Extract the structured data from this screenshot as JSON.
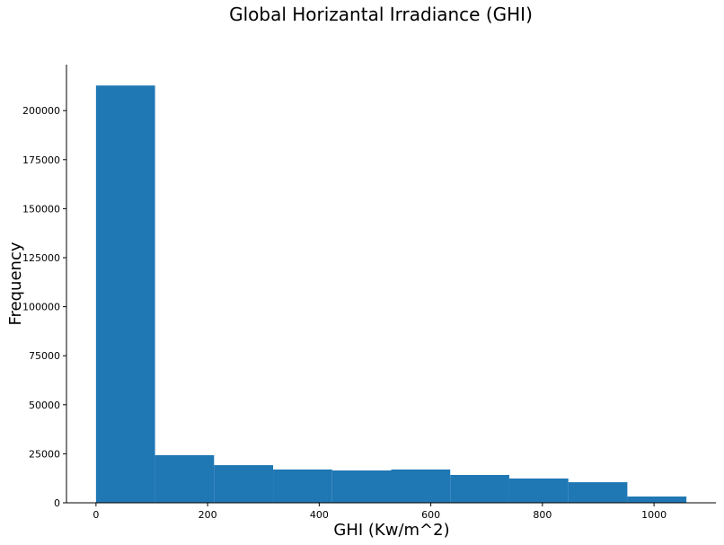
{
  "chart_data": {
    "type": "histogram",
    "title": "Global Horizantal Irradiance (GHI)",
    "x_label": "GHI (Kw/m^2)",
    "y_label": "Frequency",
    "bins": [
      0,
      105.8,
      211.6,
      317.4,
      423.2,
      529,
      634.8,
      740.6,
      846.4,
      952.2,
      1058
    ],
    "values": [
      212800,
      24300,
      19200,
      17000,
      16500,
      17000,
      14200,
      12400,
      10500,
      3200
    ],
    "color": "#1f77b4",
    "xlim": [
      -52.9,
      1110.9
    ],
    "xticks": [
      0,
      200,
      400,
      600,
      800,
      1000
    ],
    "ylim": [
      0,
      223440
    ],
    "yticks": [
      0,
      25000,
      50000,
      75000,
      100000,
      125000,
      150000,
      175000,
      200000
    ],
    "grid": false
  }
}
